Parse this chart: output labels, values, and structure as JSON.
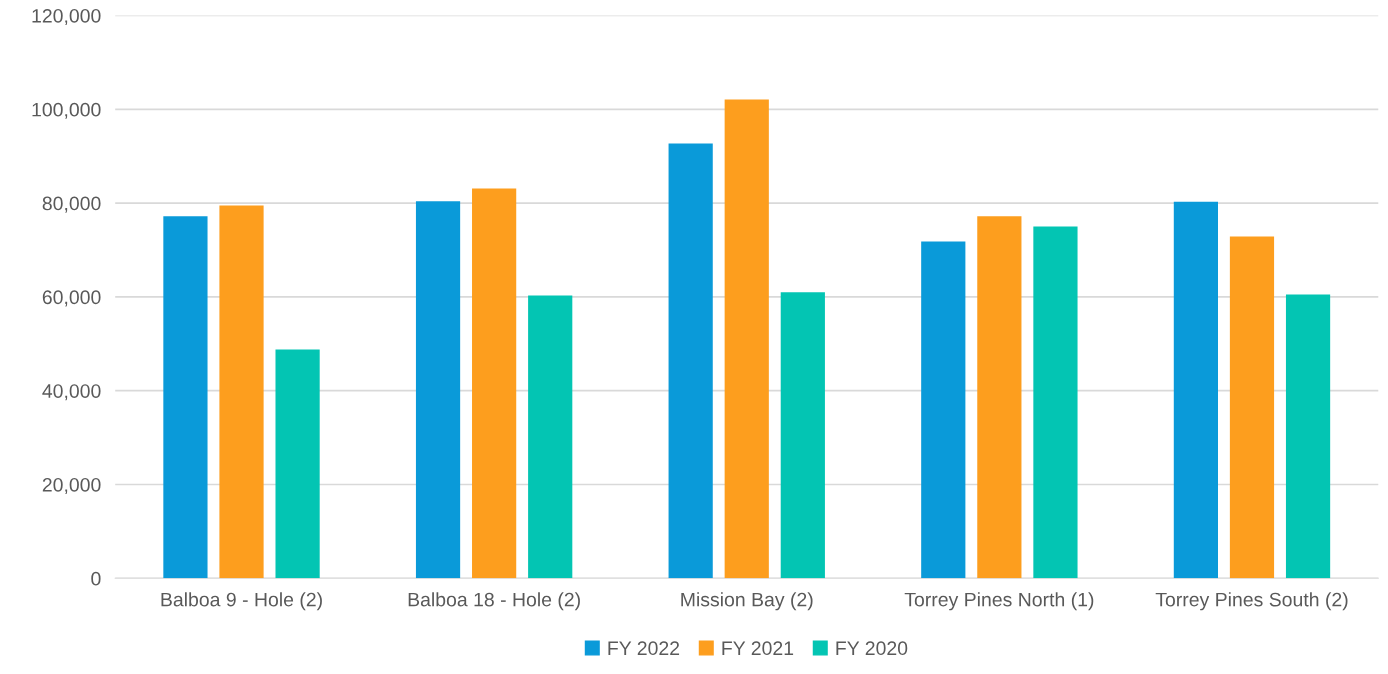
{
  "chart_data": {
    "type": "bar",
    "categories": [
      "Balboa 9 - Hole (2)",
      "Balboa 18 - Hole (2)",
      "Mission Bay (2)",
      "Torrey Pines North (1)",
      "Torrey Pines South (2)"
    ],
    "series": [
      {
        "name": "FY 2022",
        "color": "#0a9ad9",
        "values": [
          77200,
          80400,
          92700,
          71800,
          80300
        ]
      },
      {
        "name": "FY 2021",
        "color": "#fd9e1e",
        "values": [
          79500,
          83100,
          102100,
          77200,
          72900
        ]
      },
      {
        "name": "FY 2020",
        "color": "#03c5b3",
        "values": [
          48800,
          60300,
          61000,
          75000,
          60500
        ]
      }
    ],
    "ylim": [
      0,
      120000
    ],
    "yticks": [
      {
        "value": 0,
        "label": "0"
      },
      {
        "value": 20000,
        "label": "20,000"
      },
      {
        "value": 40000,
        "label": "40,000"
      },
      {
        "value": 60000,
        "label": "60,000"
      },
      {
        "value": 80000,
        "label": "80,000"
      },
      {
        "value": 100000,
        "label": "100,000"
      },
      {
        "value": 120000,
        "label": "120,000"
      }
    ],
    "grid": "y",
    "legend": "bottom"
  }
}
